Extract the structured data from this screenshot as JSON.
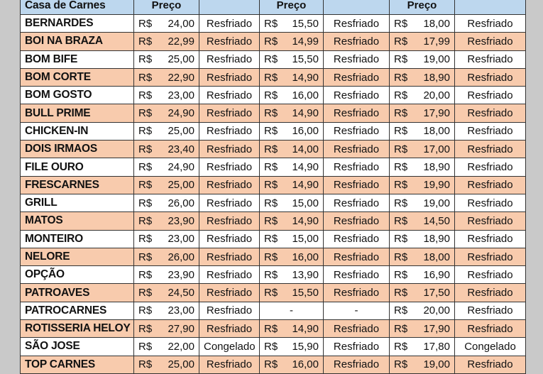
{
  "header": {
    "name": "Casa de Carnes",
    "price1": "Preço",
    "status1": "",
    "price2": "Preço",
    "status2": "",
    "price3": "Preço",
    "status3": ""
  },
  "currency": "R$",
  "rows": [
    {
      "name": "BERNARDES",
      "p1": "24,00",
      "s1": "Resfriado",
      "p2": "15,50",
      "s2": "Resfriado",
      "p3": "18,00",
      "s3": "Resfriado"
    },
    {
      "name": "BOI NA BRAZA",
      "p1": "22,99",
      "s1": "Resfriado",
      "p2": "14,99",
      "s2": "Resfriado",
      "p3": "17,99",
      "s3": "Resfriado"
    },
    {
      "name": "BOM BIFE",
      "p1": "25,00",
      "s1": "Resfriado",
      "p2": "15,50",
      "s2": "Resfriado",
      "p3": "19,00",
      "s3": "Resfriado"
    },
    {
      "name": "BOM CORTE",
      "p1": "22,90",
      "s1": "Resfriado",
      "p2": "14,90",
      "s2": "Resfriado",
      "p3": "18,90",
      "s3": "Resfriado"
    },
    {
      "name": "BOM GOSTO",
      "p1": "23,00",
      "s1": "Resfriado",
      "p2": "16,00",
      "s2": "Resfriado",
      "p3": "20,00",
      "s3": "Resfriado"
    },
    {
      "name": "BULL PRIME",
      "p1": "24,90",
      "s1": "Resfriado",
      "p2": "14,90",
      "s2": "Resfriado",
      "p3": "17,90",
      "s3": "Resfriado"
    },
    {
      "name": "CHICKEN-IN",
      "p1": "25,00",
      "s1": "Resfriado",
      "p2": "16,00",
      "s2": "Resfriado",
      "p3": "18,00",
      "s3": "Resfriado"
    },
    {
      "name": "DOIS IRMAOS",
      "p1": "23,40",
      "s1": "Resfriado",
      "p2": "14,00",
      "s2": "Resfriado",
      "p3": "17,00",
      "s3": "Resfriado"
    },
    {
      "name": "FILE OURO",
      "p1": "24,90",
      "s1": "Resfriado",
      "p2": "14,90",
      "s2": "Resfriado",
      "p3": "18,90",
      "s3": "Resfriado"
    },
    {
      "name": "FRESCARNES",
      "p1": "25,00",
      "s1": "Resfriado",
      "p2": "14,90",
      "s2": "Resfriado",
      "p3": "19,90",
      "s3": "Resfriado"
    },
    {
      "name": "GRILL",
      "p1": "26,00",
      "s1": "Resfriado",
      "p2": "15,00",
      "s2": "Resfriado",
      "p3": "19,00",
      "s3": "Resfriado"
    },
    {
      "name": "MATOS",
      "p1": "23,90",
      "s1": "Resfriado",
      "p2": "14,90",
      "s2": "Resfriado",
      "p3": "14,50",
      "s3": "Resfriado"
    },
    {
      "name": "MONTEIRO",
      "p1": "23,00",
      "s1": "Resfriado",
      "p2": "15,00",
      "s2": "Resfriado",
      "p3": "18,90",
      "s3": "Resfriado"
    },
    {
      "name": "NELORE",
      "p1": "26,00",
      "s1": "Resfriado",
      "p2": "16,00",
      "s2": "Resfriado",
      "p3": "18,00",
      "s3": "Resfriado"
    },
    {
      "name": "OPÇÃO",
      "p1": "23,90",
      "s1": "Resfriado",
      "p2": "13,90",
      "s2": "Resfriado",
      "p3": "16,90",
      "s3": "Resfriado"
    },
    {
      "name": "PATROAVES",
      "p1": "24,50",
      "s1": "Resfriado",
      "p2": "15,50",
      "s2": "Resfriado",
      "p3": "17,50",
      "s3": "Resfriado"
    },
    {
      "name": "PATROCARNES",
      "p1": "23,00",
      "s1": "Resfriado",
      "p2": null,
      "s2": "-",
      "p3": "20,00",
      "s3": "Resfriado",
      "p2dash": "-"
    },
    {
      "name": "ROTISSERIA HELOY",
      "p1": "27,90",
      "s1": "Resfriado",
      "p2": "14,90",
      "s2": "Resfriado",
      "p3": "17,90",
      "s3": "Resfriado"
    },
    {
      "name": "SÃO JOSE",
      "p1": "22,00",
      "s1": "Congelado",
      "p2": "15,90",
      "s2": "Resfriado",
      "p3": "17,80",
      "s3": "Congelado"
    },
    {
      "name": "TOP CARNES",
      "p1": "25,00",
      "s1": "Resfriado",
      "p2": "16,00",
      "s2": "Resfriado",
      "p3": "19,00",
      "s3": "Resfriado"
    }
  ],
  "colors": {
    "header": "#bdd7ee",
    "stripe": "#f8cbad",
    "background": "#c9c9c9"
  }
}
